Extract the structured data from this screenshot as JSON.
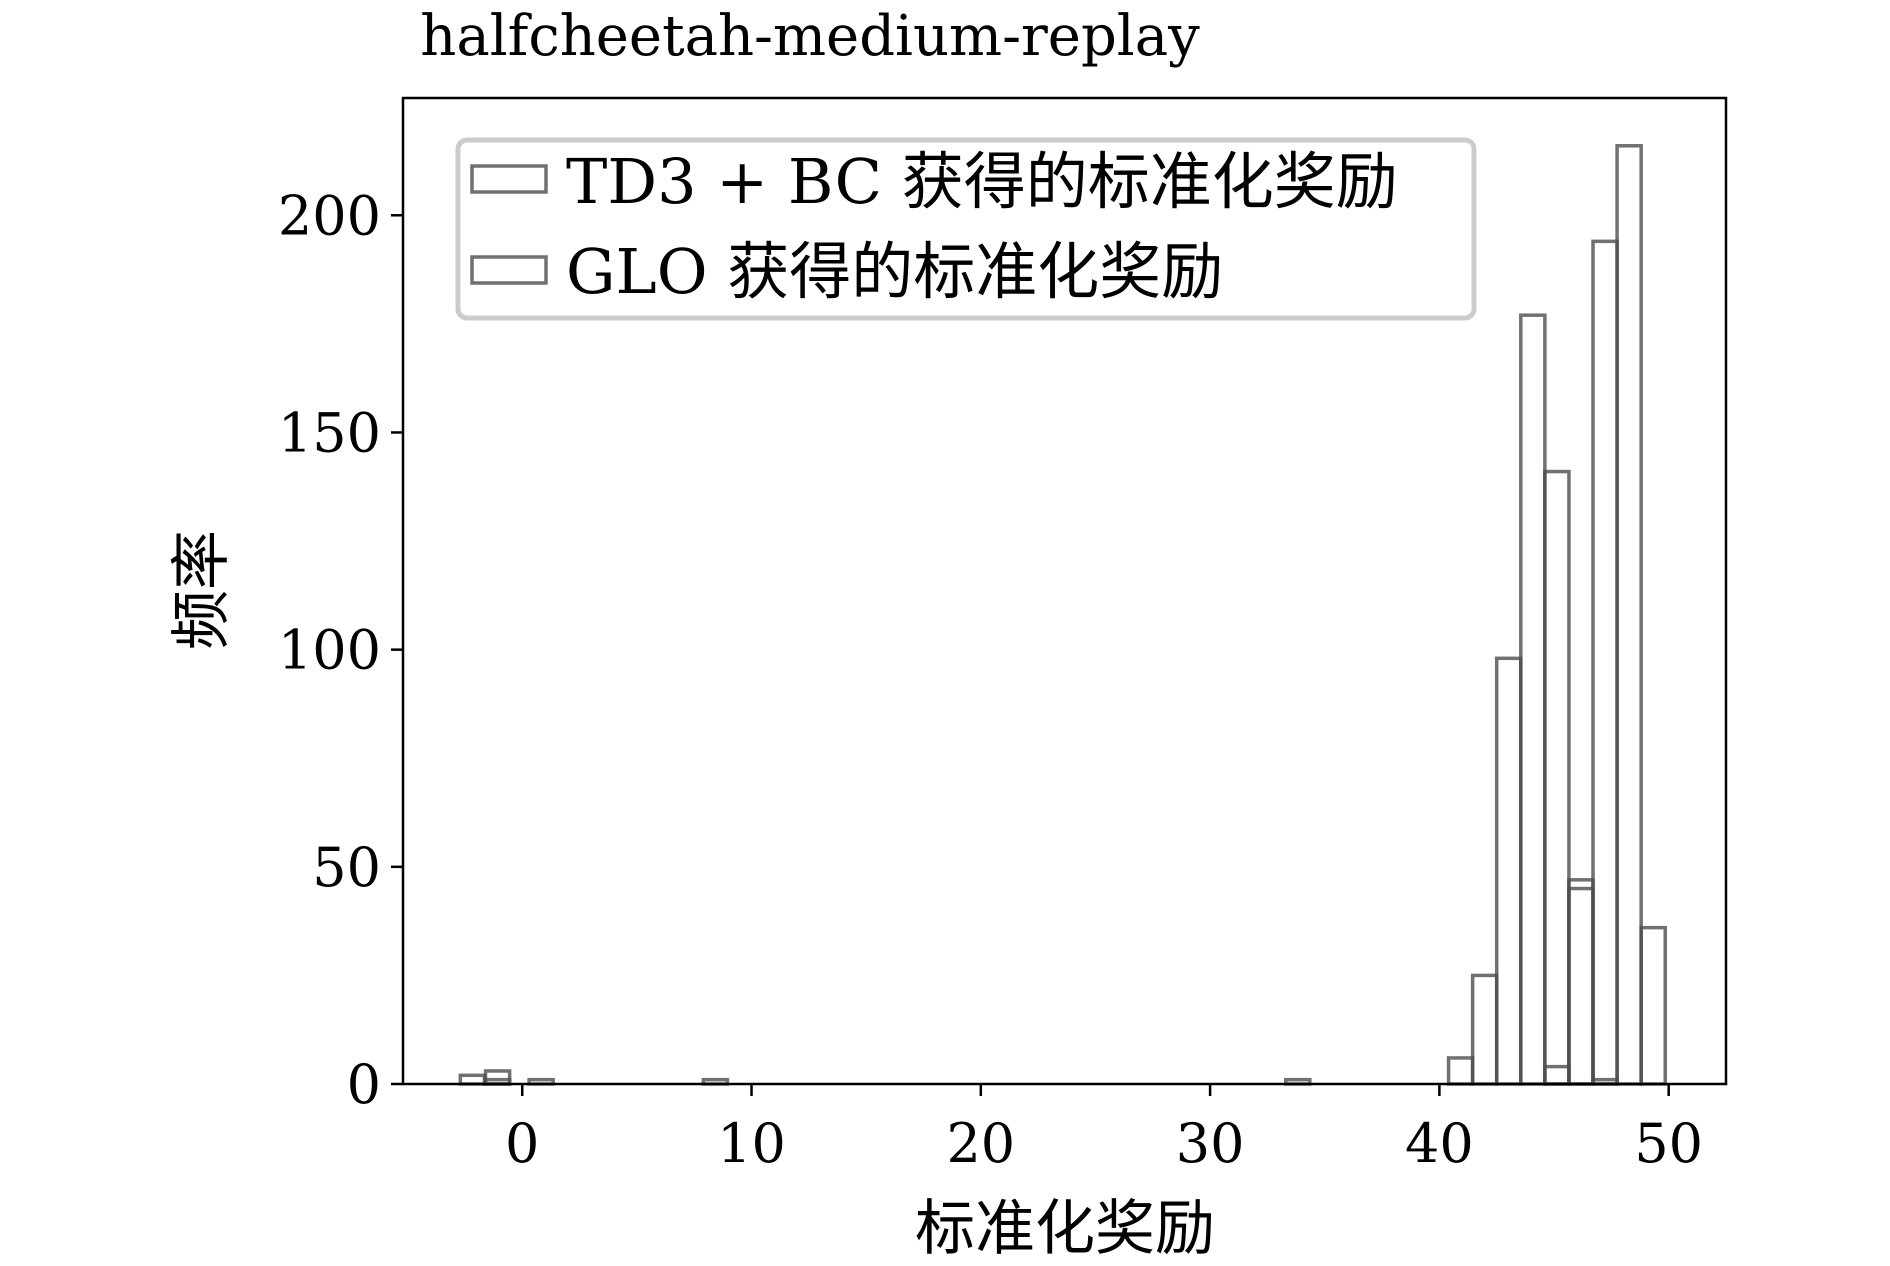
{
  "chart_data": {
    "type": "bar",
    "subtype": "overlaid-histogram",
    "title": "halfcheetah-medium-replay",
    "xlabel": "标准化奖励",
    "ylabel": "频率",
    "xlim": [
      -5.2,
      52.5
    ],
    "ylim": [
      0,
      227
    ],
    "xticks": [
      0,
      10,
      20,
      30,
      40,
      50
    ],
    "yticks": [
      0,
      50,
      100,
      150,
      200
    ],
    "grid": false,
    "legend_position": "upper-left",
    "series": [
      {
        "name": "TD3 + BC 获得的标准化奖励",
        "color": "#4d4d4d",
        "bin_width": 1.05,
        "bins": [
          {
            "x0": -2.7,
            "count": 2
          },
          {
            "x0": -1.6,
            "count": 1
          },
          {
            "x0": 0.3,
            "count": 1
          },
          {
            "x0": 7.9,
            "count": 1
          },
          {
            "x0": 33.3,
            "count": 1
          },
          {
            "x0": 44.6,
            "count": 4
          },
          {
            "x0": 45.65,
            "count": 45
          },
          {
            "x0": 46.7,
            "count": 1
          },
          {
            "x0": 46.7,
            "count": 194
          },
          {
            "x0": 47.75,
            "count": 216
          },
          {
            "x0": 48.8,
            "count": 36
          }
        ]
      },
      {
        "name": "GLO 获得的标准化奖励",
        "color": "#4d4d4d",
        "bin_width": 1.05,
        "bins": [
          {
            "x0": -1.6,
            "count": 3
          },
          {
            "x0": 40.4,
            "count": 6
          },
          {
            "x0": 41.45,
            "count": 25
          },
          {
            "x0": 42.5,
            "count": 98
          },
          {
            "x0": 43.55,
            "count": 177
          },
          {
            "x0": 44.6,
            "count": 141
          },
          {
            "x0": 45.65,
            "count": 47
          }
        ]
      }
    ]
  }
}
